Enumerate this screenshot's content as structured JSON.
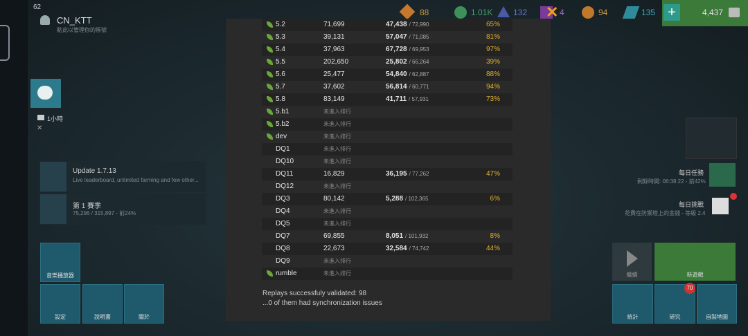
{
  "status_bar": {
    "fps": "62"
  },
  "account": {
    "name": "CN_KTT",
    "hint": "點此以管理你的帳號"
  },
  "resources": {
    "r1": "88",
    "r2": "1.01K",
    "r3": "132",
    "r4": "4",
    "r5": "94",
    "r6": "135",
    "coins": "4,437"
  },
  "side": {
    "timer": "1小時"
  },
  "news": {
    "title": "Update 1.7.13",
    "text": "Live leaderboard, unlimited farming and few other..."
  },
  "season": {
    "title": "第 1 賽季",
    "text": "75,296 / 315,897 - 前24%"
  },
  "left_buttons": [
    "音樂播放器",
    "設定",
    "說明書",
    "關於"
  ],
  "daily": {
    "quest": "每日任務",
    "quest_info": "剩餘時間: 08:38:22 - 前42%",
    "challenge": "每日挑戰",
    "challenge_info": "花費在防禦塔上的金錢 - 等級 2.4"
  },
  "right_buttons": {
    "continue": "繼續",
    "new_game": "新遊戲",
    "stats": "統計",
    "research": "研究",
    "research_badge": "70",
    "custom_maps": "自製地圖"
  },
  "table": {
    "rows": [
      {
        "map": "5.2",
        "leaf": true,
        "score": "71,699",
        "best": "47,438",
        "total": "/ 72,990",
        "pct": "65%"
      },
      {
        "map": "5.3",
        "leaf": true,
        "score": "39,131",
        "best": "57,047",
        "total": "/ 71,085",
        "pct": "81%"
      },
      {
        "map": "5.4",
        "leaf": true,
        "score": "37,963",
        "best": "67,728",
        "total": "/ 69,953",
        "pct": "97%"
      },
      {
        "map": "5.5",
        "leaf": true,
        "score": "202,650",
        "best": "25,802",
        "total": "/ 66,264",
        "pct": "39%"
      },
      {
        "map": "5.6",
        "leaf": true,
        "score": "25,477",
        "best": "54,840",
        "total": "/ 62,887",
        "pct": "88%"
      },
      {
        "map": "5.7",
        "leaf": true,
        "score": "37,602",
        "best": "56,814",
        "total": "/ 60,771",
        "pct": "94%"
      },
      {
        "map": "5.8",
        "leaf": true,
        "score": "83,149",
        "best": "41,711",
        "total": "/ 57,931",
        "pct": "73%"
      },
      {
        "map": "5.b1",
        "leaf": true,
        "status": "未進入排行"
      },
      {
        "map": "5.b2",
        "leaf": true,
        "status": "未進入排行"
      },
      {
        "map": "dev",
        "leaf": true,
        "status": "未進入排行"
      },
      {
        "map": "DQ1",
        "leaf": false,
        "status": "未進入排行"
      },
      {
        "map": "DQ10",
        "leaf": false,
        "status": "未進入排行"
      },
      {
        "map": "DQ11",
        "leaf": false,
        "score": "16,829",
        "best": "36,195",
        "total": "/ 77,262",
        "pct": "47%"
      },
      {
        "map": "DQ12",
        "leaf": false,
        "status": "未進入排行"
      },
      {
        "map": "DQ3",
        "leaf": false,
        "score": "80,142",
        "best": "5,288",
        "total": "/ 102,365",
        "pct": "6%"
      },
      {
        "map": "DQ4",
        "leaf": false,
        "status": "未進入排行"
      },
      {
        "map": "DQ5",
        "leaf": false,
        "status": "未進入排行"
      },
      {
        "map": "DQ7",
        "leaf": false,
        "score": "69,855",
        "best": "8,051",
        "total": "/ 101,932",
        "pct": "8%"
      },
      {
        "map": "DQ8",
        "leaf": false,
        "score": "22,673",
        "best": "32,584",
        "total": "/ 74,742",
        "pct": "44%"
      },
      {
        "map": "DQ9",
        "leaf": false,
        "status": "未進入排行"
      },
      {
        "map": "rumble",
        "leaf": true,
        "status": "未進入排行"
      }
    ]
  },
  "footer": {
    "line1": "Replays successfuly validated: 98",
    "line2": "...0 of them had synchronization issues"
  }
}
